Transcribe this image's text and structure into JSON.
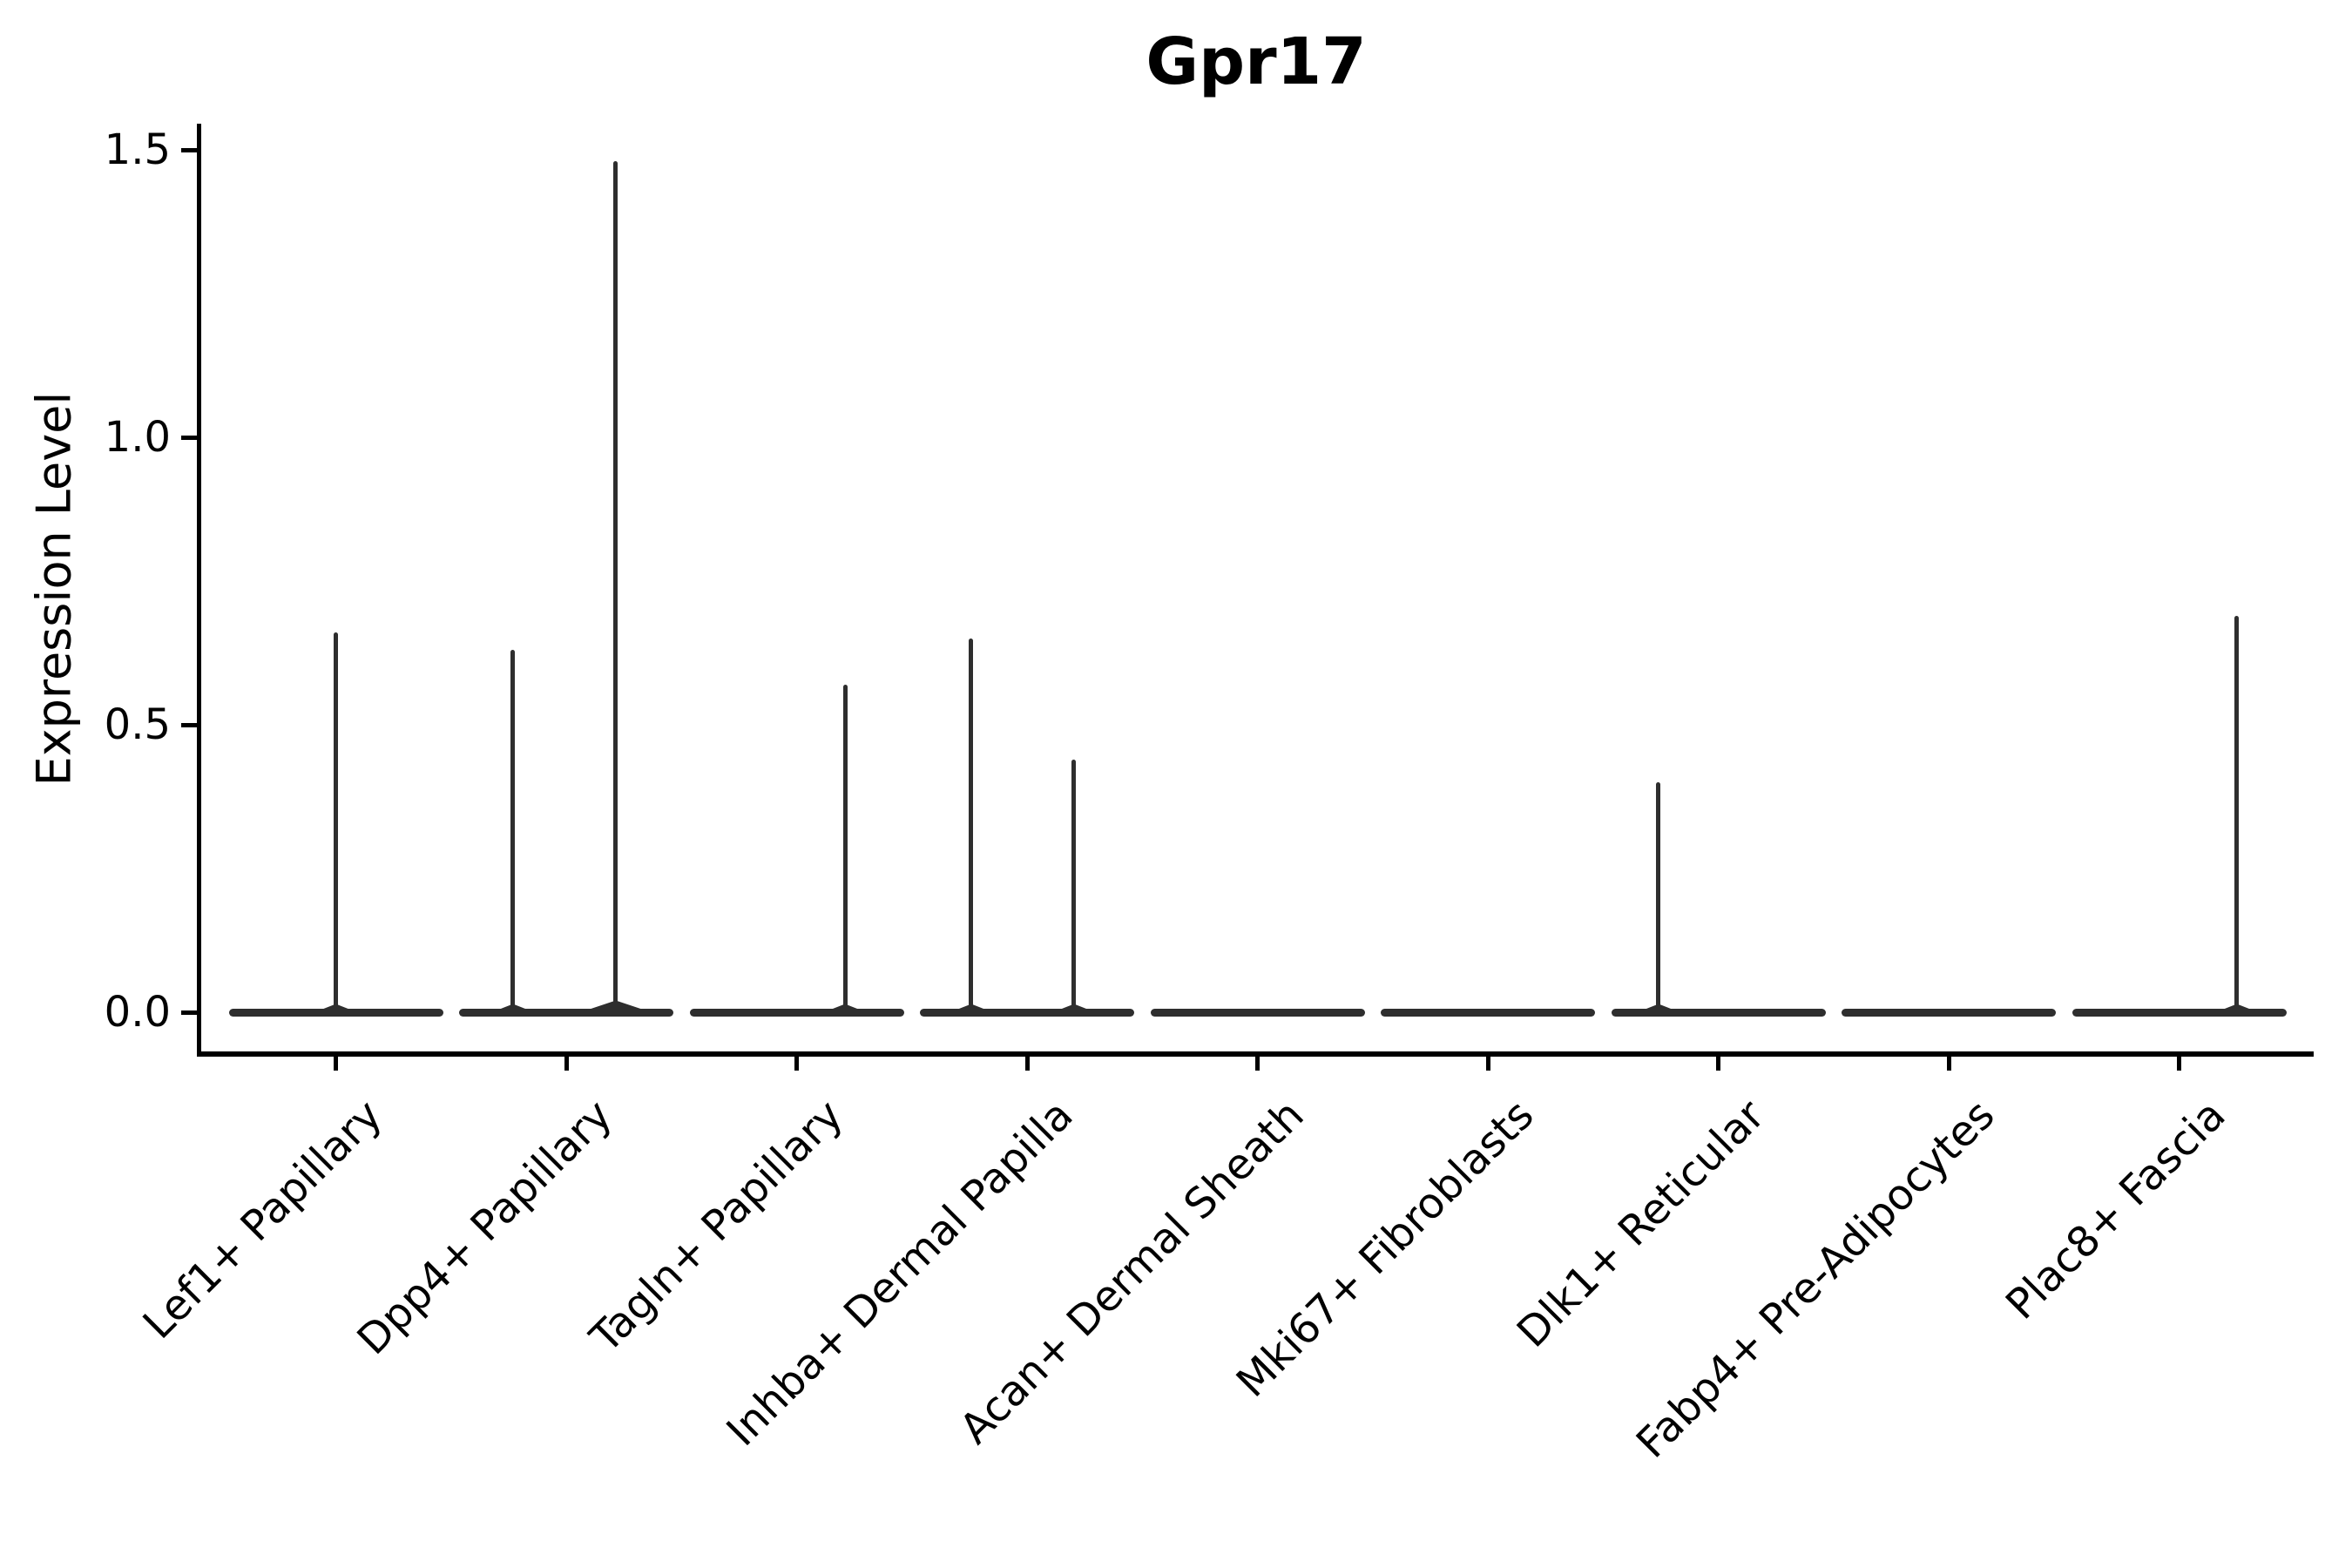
{
  "title": "Gpr17",
  "colors": {
    "background": "#ffffff",
    "ink": "#000000",
    "violin": "#2e2e2e"
  },
  "chart_data": {
    "type": "violin",
    "title": "Gpr17",
    "xlabel": "",
    "ylabel": "Expression Level",
    "ylim": [
      0,
      1.5
    ],
    "yticks": [
      0.0,
      0.5,
      1.0,
      1.5
    ],
    "ytick_labels": [
      "0.0",
      "0.5",
      "1.0",
      "1.5"
    ],
    "grid": false,
    "legend": null,
    "categories": [
      "Lef1+ Papillary",
      "Dpp4+ Papillary",
      "Tagln+ Papillary",
      "Inhba+ Dermal Papilla",
      "Acan+ Dermal Sheath",
      "Mki67+ Fibroblasts",
      "Dlk1+ Reticular",
      "Fabp4+ Pre-Adipocytes",
      "Plac8+ Fascia"
    ],
    "series": [
      {
        "name": "Lef1+ Papillary",
        "max_expression": 0.66,
        "spikes": [
          {
            "offset_frac": 0.0,
            "value": 0.66
          }
        ]
      },
      {
        "name": "Dpp4+ Papillary",
        "max_expression": 1.48,
        "spikes": [
          {
            "offset_frac": -0.231,
            "value": 0.63
          },
          {
            "offset_frac": 0.215,
            "value": 1.48
          }
        ]
      },
      {
        "name": "Tagln+ Papillary",
        "max_expression": 0.57,
        "spikes": [
          {
            "offset_frac": 0.21,
            "value": 0.57
          }
        ]
      },
      {
        "name": "Inhba+ Dermal Papilla",
        "max_expression": 0.65,
        "spikes": [
          {
            "offset_frac": -0.242,
            "value": 0.65
          },
          {
            "offset_frac": 0.204,
            "value": 0.44
          }
        ]
      },
      {
        "name": "Acan+ Dermal Sheath",
        "max_expression": 0.0,
        "spikes": []
      },
      {
        "name": "Mki67+ Fibroblasts",
        "max_expression": 0.0,
        "spikes": []
      },
      {
        "name": "Dlk1+ Reticular",
        "max_expression": 0.4,
        "spikes": [
          {
            "offset_frac": -0.259,
            "value": 0.4
          }
        ]
      },
      {
        "name": "Fabp4+ Pre-Adipocytes",
        "max_expression": 0.0,
        "spikes": []
      },
      {
        "name": "Plac8+ Fascia",
        "max_expression": 0.69,
        "spikes": [
          {
            "offset_frac": 0.251,
            "value": 0.69
          }
        ]
      }
    ]
  }
}
